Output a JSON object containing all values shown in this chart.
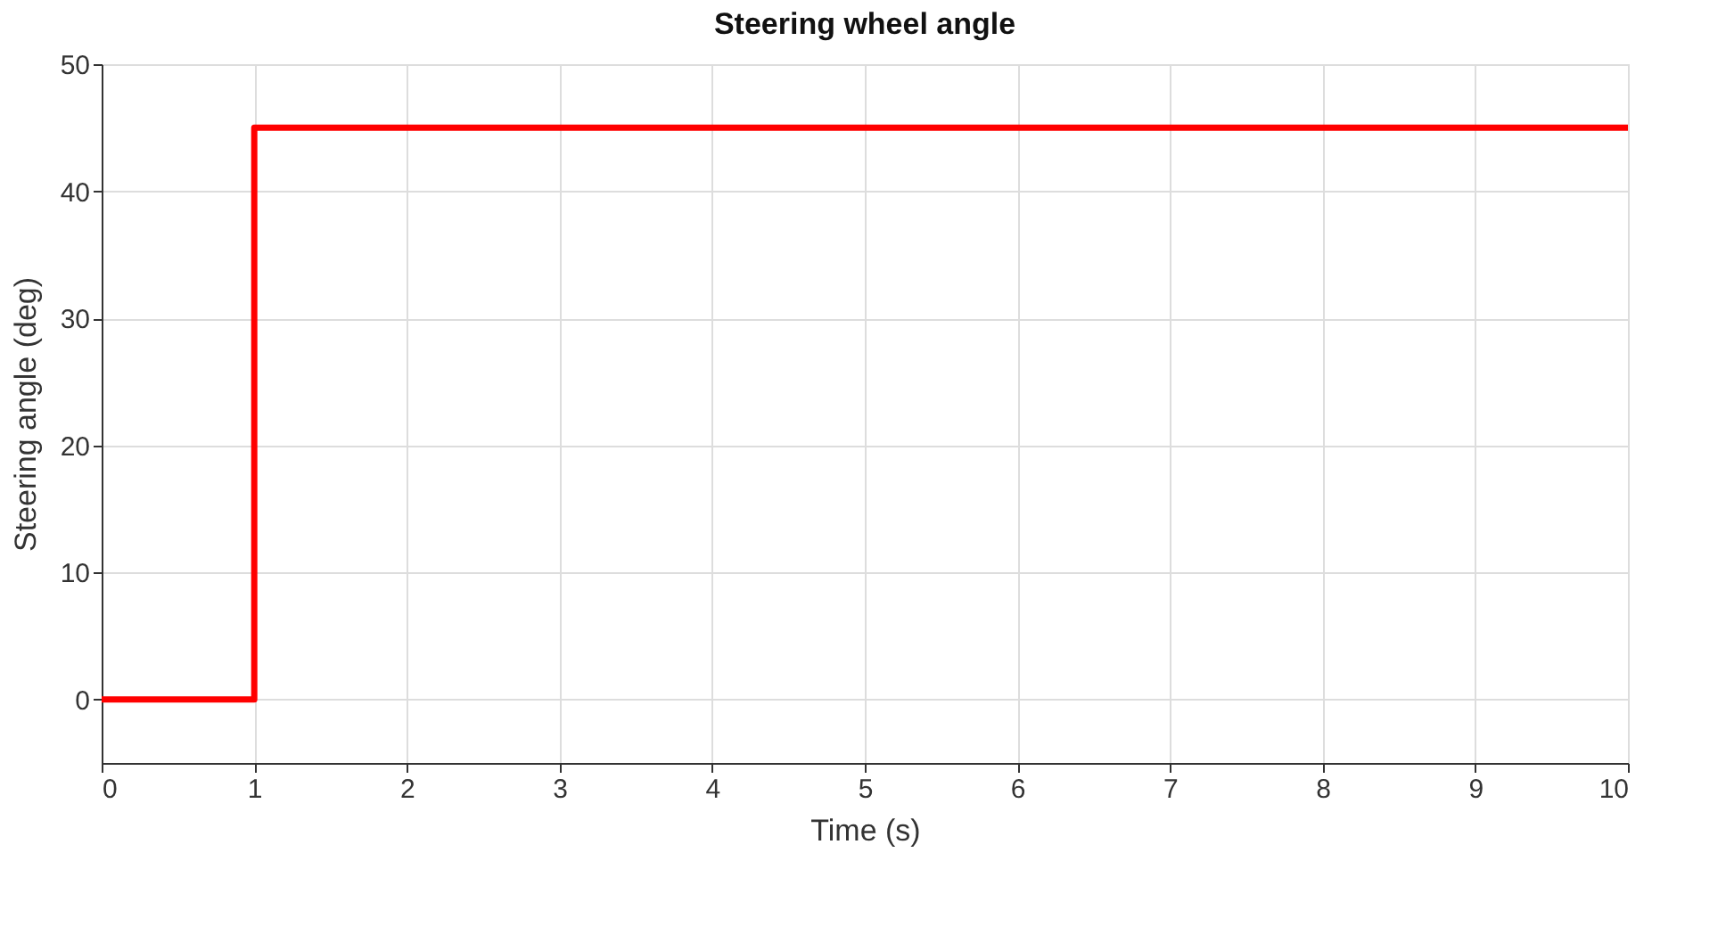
{
  "chart_data": {
    "type": "line",
    "title": "Steering wheel angle",
    "xlabel": "Time (s)",
    "ylabel": "Steering angle (deg)",
    "x": [
      0,
      1,
      1,
      10
    ],
    "series": [
      {
        "color": "#ff0000",
        "values": [
          0,
          0,
          45,
          45
        ]
      }
    ],
    "xlim": [
      0,
      10
    ],
    "xticks": [
      0,
      1,
      2,
      3,
      4,
      5,
      6,
      7,
      8,
      9,
      10
    ],
    "ylim": [
      -5,
      50
    ],
    "yticks": [
      0,
      10,
      20,
      30,
      40,
      50
    ],
    "grid": true,
    "marker": "none",
    "line_style": "solid"
  }
}
